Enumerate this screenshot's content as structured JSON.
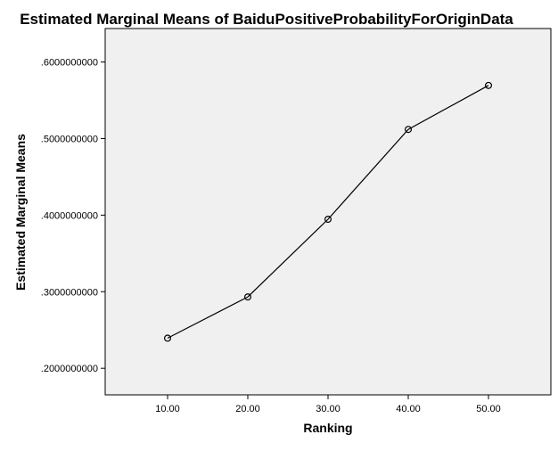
{
  "chart_data": {
    "type": "line",
    "title": "Estimated Marginal Means of BaiduPositiveProbabilityForOriginData",
    "xlabel": "Ranking",
    "ylabel": "Estimated Marginal Means",
    "categories": [
      "10.00",
      "20.00",
      "30.00",
      "40.00",
      "50.00"
    ],
    "series": [
      {
        "values": [
          0.2393,
          0.2932,
          0.3946,
          0.5119,
          0.5694
        ]
      }
    ],
    "yticks": [
      ".2000000000",
      ".3000000000",
      ".4000000000",
      ".5000000000",
      ".6000000000"
    ],
    "ytick_values": [
      0.2,
      0.3,
      0.4,
      0.5,
      0.6
    ],
    "ylim": [
      0.1653,
      0.6437
    ],
    "grid": false,
    "legend": "none",
    "colors": {
      "plot_background": "#f0f0f0",
      "line": "#000000",
      "axis": "#000000"
    }
  }
}
